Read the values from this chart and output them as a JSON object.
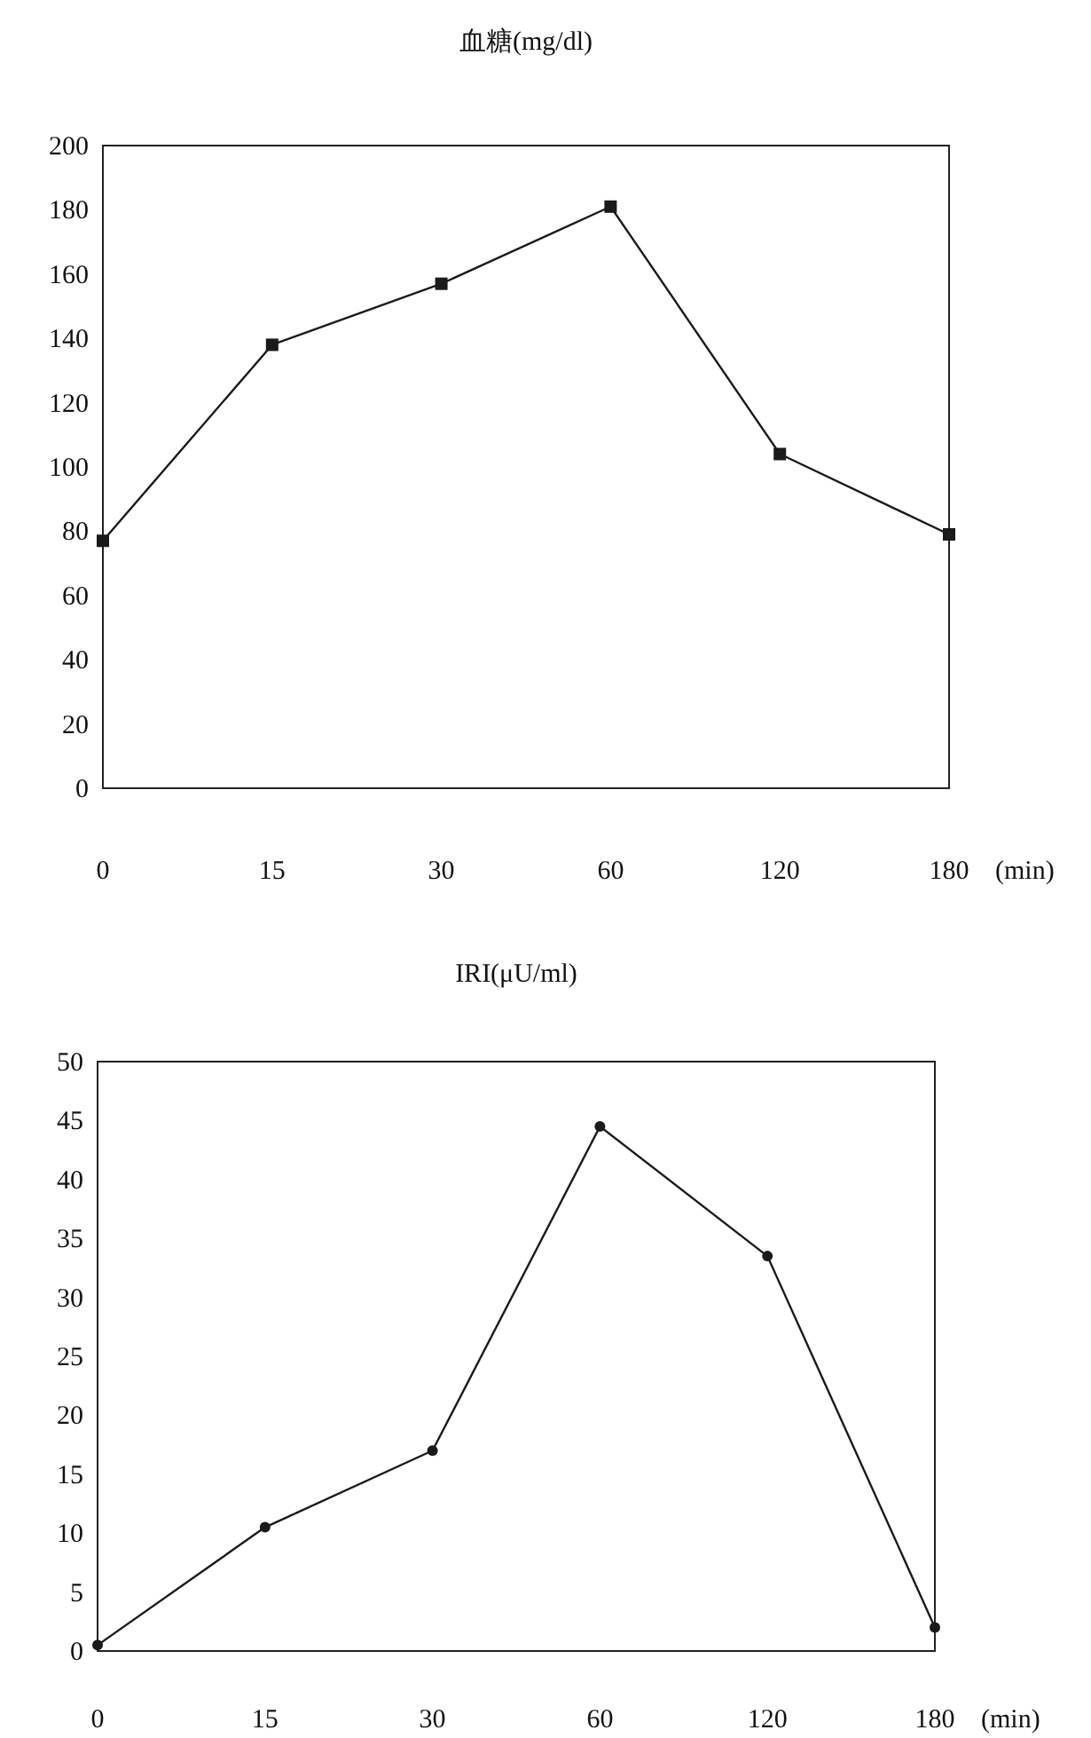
{
  "chart_data": [
    {
      "type": "line",
      "title": "血糖(mg/dl)",
      "xlabel": "(min)",
      "categories": [
        "0",
        "15",
        "30",
        "60",
        "120",
        "180"
      ],
      "values": [
        77,
        138,
        157,
        181,
        104,
        79
      ],
      "color": "#1a1a1a",
      "ylim": [
        0,
        200
      ],
      "yticks": [
        0,
        20,
        40,
        60,
        80,
        100,
        120,
        140,
        160,
        180,
        200
      ],
      "marker": "square",
      "line_style": "solid"
    },
    {
      "type": "line",
      "title": "IRI(μU/ml)",
      "xlabel": "(min)",
      "categories": [
        "0",
        "15",
        "30",
        "60",
        "120",
        "180"
      ],
      "values": [
        0.5,
        10.5,
        17,
        44.5,
        33.5,
        2
      ],
      "color": "#1a1a1a",
      "ylim": [
        0,
        50
      ],
      "yticks": [
        0,
        5,
        10,
        15,
        20,
        25,
        30,
        35,
        40,
        45,
        50
      ],
      "marker": "circle",
      "line_style": "solid"
    }
  ]
}
